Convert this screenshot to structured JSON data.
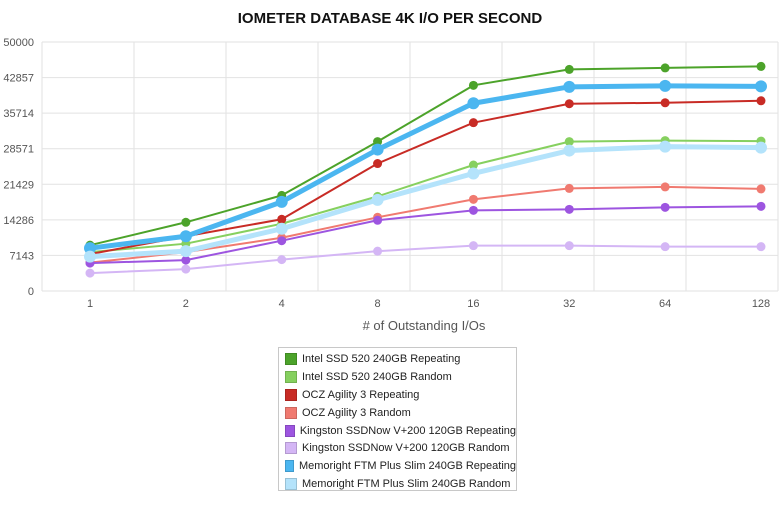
{
  "chart_data": {
    "type": "line",
    "title": "IOMETER DATABASE 4K I/O PER SECOND",
    "xlabel": "# of Outstanding I/Os",
    "ylabel": "",
    "categories": [
      "1",
      "2",
      "4",
      "8",
      "16",
      "32",
      "64",
      "128"
    ],
    "yticks": [
      "0",
      "7143",
      "14286",
      "21429",
      "28571",
      "35714",
      "42857",
      "50000"
    ],
    "ylim": [
      0,
      50000
    ],
    "grid": true,
    "legend_position": "bottom-center",
    "series": [
      {
        "name": "Intel SSD 520 240GB Repeating",
        "color": "#4ca32a",
        "values": [
          9200,
          13800,
          19200,
          30000,
          41300,
          44500,
          44800,
          45100
        ]
      },
      {
        "name": "Intel SSD 520 240GB Random",
        "color": "#86d05f",
        "values": [
          7800,
          9500,
          13500,
          19000,
          25300,
          30000,
          30200,
          30100
        ]
      },
      {
        "name": "OCZ Agility 3 Repeating",
        "color": "#c82b25",
        "values": [
          7400,
          11000,
          14400,
          25600,
          33800,
          37600,
          37800,
          38200
        ]
      },
      {
        "name": "OCZ Agility 3 Random",
        "color": "#f07a70",
        "values": [
          5700,
          7800,
          10700,
          14800,
          18400,
          20600,
          20900,
          20500
        ]
      },
      {
        "name": "Kingston SSDNow V+200 120GB Repeating",
        "color": "#9d55e0",
        "values": [
          5600,
          6200,
          10100,
          14200,
          16200,
          16400,
          16800,
          17000
        ]
      },
      {
        "name": "Kingston SSDNow V+200 120GB Random",
        "color": "#d4b6f5",
        "values": [
          3600,
          4400,
          6300,
          8000,
          9100,
          9100,
          8900,
          8900
        ]
      },
      {
        "name": "Memoright FTM Plus Slim 240GB Repeating",
        "color": "#4bb6f0",
        "values": [
          8600,
          11000,
          17900,
          28400,
          37700,
          41000,
          41200,
          41100
        ]
      },
      {
        "name": "Memoright FTM Plus Slim 240GB Random",
        "color": "#b4e3fb",
        "values": [
          6900,
          8000,
          12500,
          18300,
          23600,
          28200,
          29000,
          28800
        ]
      }
    ]
  }
}
